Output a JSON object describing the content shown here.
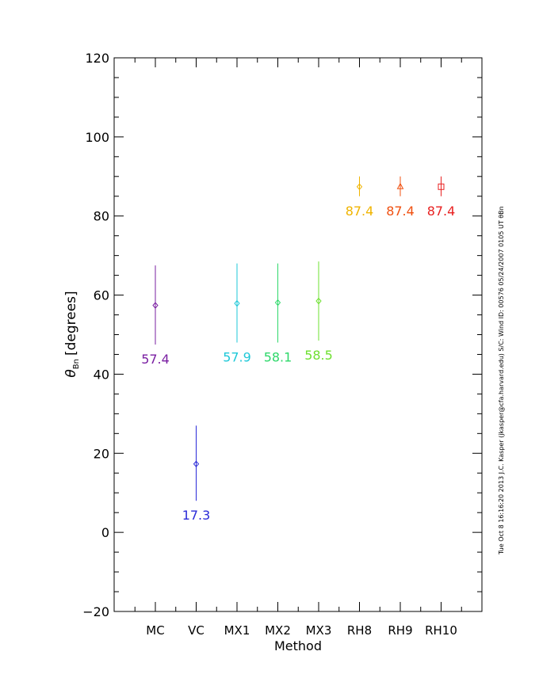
{
  "chart_data": {
    "type": "scatter",
    "xlabel": "Method",
    "ylabel": "θ",
    "ylabel_sub": "Bn",
    "ylabel_suffix": "[degrees]",
    "ylim": [
      -20,
      120
    ],
    "yticks": [
      -20,
      0,
      20,
      40,
      60,
      80,
      100,
      120
    ],
    "ytick_labels": [
      "−20",
      "0",
      "20",
      "40",
      "60",
      "80",
      "100",
      "120"
    ],
    "categories": [
      "MC",
      "VC",
      "MX1",
      "MX2",
      "MX3",
      "RH8",
      "RH9",
      "RH10"
    ],
    "series": [
      {
        "value": 57.4,
        "lower": 47.5,
        "upper": 67.5,
        "marker": "diamond",
        "color": "#7a1fa2",
        "label": "57.4"
      },
      {
        "value": 17.3,
        "lower": 8.0,
        "upper": 27.0,
        "marker": "diamond",
        "color": "#2a2ad8",
        "label": "17.3"
      },
      {
        "value": 57.9,
        "lower": 48.0,
        "upper": 68.0,
        "marker": "diamond",
        "color": "#1ec8d8",
        "label": "57.9"
      },
      {
        "value": 58.1,
        "lower": 48.0,
        "upper": 68.0,
        "marker": "diamond",
        "color": "#2ed86a",
        "label": "58.1"
      },
      {
        "value": 58.5,
        "lower": 48.5,
        "upper": 68.5,
        "marker": "diamond",
        "color": "#6ee030",
        "label": "58.5"
      },
      {
        "value": 87.4,
        "lower": 85.0,
        "upper": 90.0,
        "marker": "diamond",
        "color": "#f0b400",
        "label": "87.4"
      },
      {
        "value": 87.4,
        "lower": 85.0,
        "upper": 90.0,
        "marker": "triangle",
        "color": "#f05010",
        "label": "87.4"
      },
      {
        "value": 87.4,
        "lower": 85.0,
        "upper": 90.0,
        "marker": "square",
        "color": "#e82020",
        "label": "87.4"
      }
    ],
    "grid": false,
    "side_note": "Tue Oct  8 16:16:20 2013   J.C. Kasper (jkasper@cfa.harvard.edu)   S/C: Wind ID: 00576 05/24/2007  0105 UT θBn"
  }
}
